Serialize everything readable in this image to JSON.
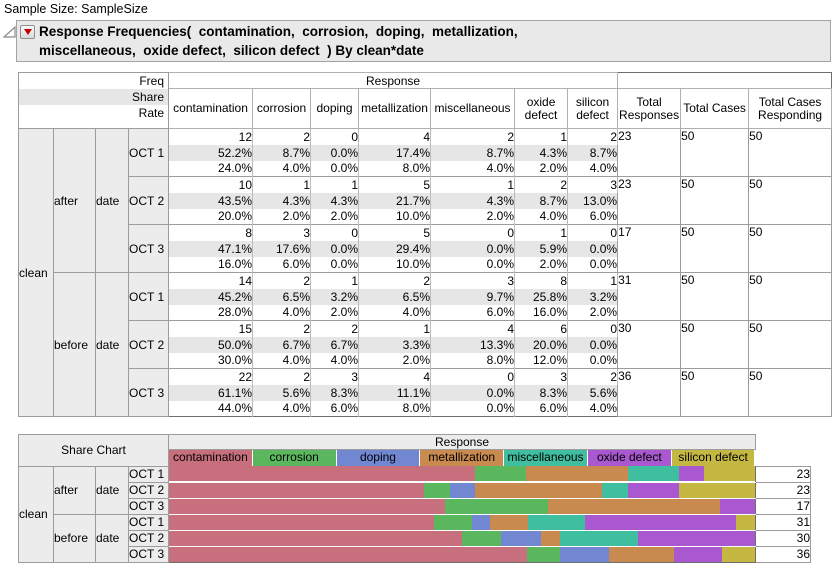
{
  "page": {
    "sample_size": "Sample Size: SampleSize"
  },
  "outline": {
    "title_line1": "Response Frequencies(  contamination,  corrosion,  doping,  metallization,",
    "title_line2": "miscellaneous,  oxide defect,  silicon defect  ) By clean*date"
  },
  "freq_table": {
    "stat_labels": [
      "Freq",
      "Share",
      "Rate"
    ],
    "response_header": "Response",
    "columns": [
      "contamination",
      "corrosion",
      "doping",
      "metallization",
      "miscellaneous",
      "oxide defect",
      "silicon defect"
    ],
    "total_headers": [
      "Total Responses",
      "Total Cases",
      "Total Cases Responding"
    ],
    "row_group_label": "clean",
    "date_label": "date",
    "groups": [
      {
        "clean": "after",
        "date": "OCT 1",
        "freq": [
          "12",
          "2",
          "0",
          "4",
          "2",
          "1",
          "2"
        ],
        "share": [
          "52.2%",
          "8.7%",
          "0.0%",
          "17.4%",
          "8.7%",
          "4.3%",
          "8.7%"
        ],
        "rate": [
          "24.0%",
          "4.0%",
          "0.0%",
          "8.0%",
          "4.0%",
          "2.0%",
          "4.0%"
        ],
        "total_responses": "23",
        "total_cases": "50",
        "total_cases_responding": "50"
      },
      {
        "clean": "after",
        "date": "OCT 2",
        "freq": [
          "10",
          "1",
          "1",
          "5",
          "1",
          "2",
          "3"
        ],
        "share": [
          "43.5%",
          "4.3%",
          "4.3%",
          "21.7%",
          "4.3%",
          "8.7%",
          "13.0%"
        ],
        "rate": [
          "20.0%",
          "2.0%",
          "2.0%",
          "10.0%",
          "2.0%",
          "4.0%",
          "6.0%"
        ],
        "total_responses": "23",
        "total_cases": "50",
        "total_cases_responding": "50"
      },
      {
        "clean": "after",
        "date": "OCT 3",
        "freq": [
          "8",
          "3",
          "0",
          "5",
          "0",
          "1",
          "0"
        ],
        "share": [
          "47.1%",
          "17.6%",
          "0.0%",
          "29.4%",
          "0.0%",
          "5.9%",
          "0.0%"
        ],
        "rate": [
          "16.0%",
          "6.0%",
          "0.0%",
          "10.0%",
          "0.0%",
          "2.0%",
          "0.0%"
        ],
        "total_responses": "17",
        "total_cases": "50",
        "total_cases_responding": "50"
      },
      {
        "clean": "before",
        "date": "OCT 1",
        "freq": [
          "14",
          "2",
          "1",
          "2",
          "3",
          "8",
          "1"
        ],
        "share": [
          "45.2%",
          "6.5%",
          "3.2%",
          "6.5%",
          "9.7%",
          "25.8%",
          "3.2%"
        ],
        "rate": [
          "28.0%",
          "4.0%",
          "2.0%",
          "4.0%",
          "6.0%",
          "16.0%",
          "2.0%"
        ],
        "total_responses": "31",
        "total_cases": "50",
        "total_cases_responding": "50"
      },
      {
        "clean": "before",
        "date": "OCT 2",
        "freq": [
          "15",
          "2",
          "2",
          "1",
          "4",
          "6",
          "0"
        ],
        "share": [
          "50.0%",
          "6.7%",
          "6.7%",
          "3.3%",
          "13.3%",
          "20.0%",
          "0.0%"
        ],
        "rate": [
          "30.0%",
          "4.0%",
          "4.0%",
          "2.0%",
          "8.0%",
          "12.0%",
          "0.0%"
        ],
        "total_responses": "30",
        "total_cases": "50",
        "total_cases_responding": "50"
      },
      {
        "clean": "before",
        "date": "OCT 3",
        "freq": [
          "22",
          "2",
          "3",
          "4",
          "0",
          "3",
          "2"
        ],
        "share": [
          "61.1%",
          "5.6%",
          "8.3%",
          "11.1%",
          "0.0%",
          "8.3%",
          "5.6%"
        ],
        "rate": [
          "44.0%",
          "4.0%",
          "6.0%",
          "8.0%",
          "0.0%",
          "6.0%",
          "4.0%"
        ],
        "total_responses": "36",
        "total_cases": "50",
        "total_cases_responding": "50"
      }
    ]
  },
  "share_chart": {
    "title": "Share Chart",
    "response_header": "Response",
    "row_group_label": "clean",
    "date_label": "date",
    "legend": [
      {
        "label": "contamination",
        "color": "#c76f7c"
      },
      {
        "label": "corrosion",
        "color": "#5bb75e"
      },
      {
        "label": "doping",
        "color": "#7187d1"
      },
      {
        "label": "metallization",
        "color": "#c98a4f"
      },
      {
        "label": "miscellaneous",
        "color": "#3fbfa0"
      },
      {
        "label": "oxide defect",
        "color": "#a958cf"
      },
      {
        "label": "silicon defect",
        "color": "#c4b843"
      }
    ],
    "rows": [
      {
        "clean": "after",
        "date": "OCT 1",
        "shares": [
          52.2,
          8.7,
          0.0,
          17.4,
          8.7,
          4.3,
          8.7
        ],
        "total": "23"
      },
      {
        "clean": "after",
        "date": "OCT 2",
        "shares": [
          43.5,
          4.3,
          4.3,
          21.7,
          4.3,
          8.7,
          13.0
        ],
        "total": "23"
      },
      {
        "clean": "after",
        "date": "OCT 3",
        "shares": [
          47.1,
          17.6,
          0.0,
          29.4,
          0.0,
          5.9,
          0.0
        ],
        "total": "17"
      },
      {
        "clean": "before",
        "date": "OCT 1",
        "shares": [
          45.2,
          6.5,
          3.2,
          6.5,
          9.7,
          25.8,
          3.2
        ],
        "total": "31"
      },
      {
        "clean": "before",
        "date": "OCT 2",
        "shares": [
          50.0,
          6.7,
          6.7,
          3.3,
          13.3,
          20.0,
          0.0
        ],
        "total": "30"
      },
      {
        "clean": "before",
        "date": "OCT 3",
        "shares": [
          61.1,
          5.6,
          8.3,
          11.1,
          0.0,
          8.3,
          5.6
        ],
        "total": "36"
      }
    ]
  }
}
